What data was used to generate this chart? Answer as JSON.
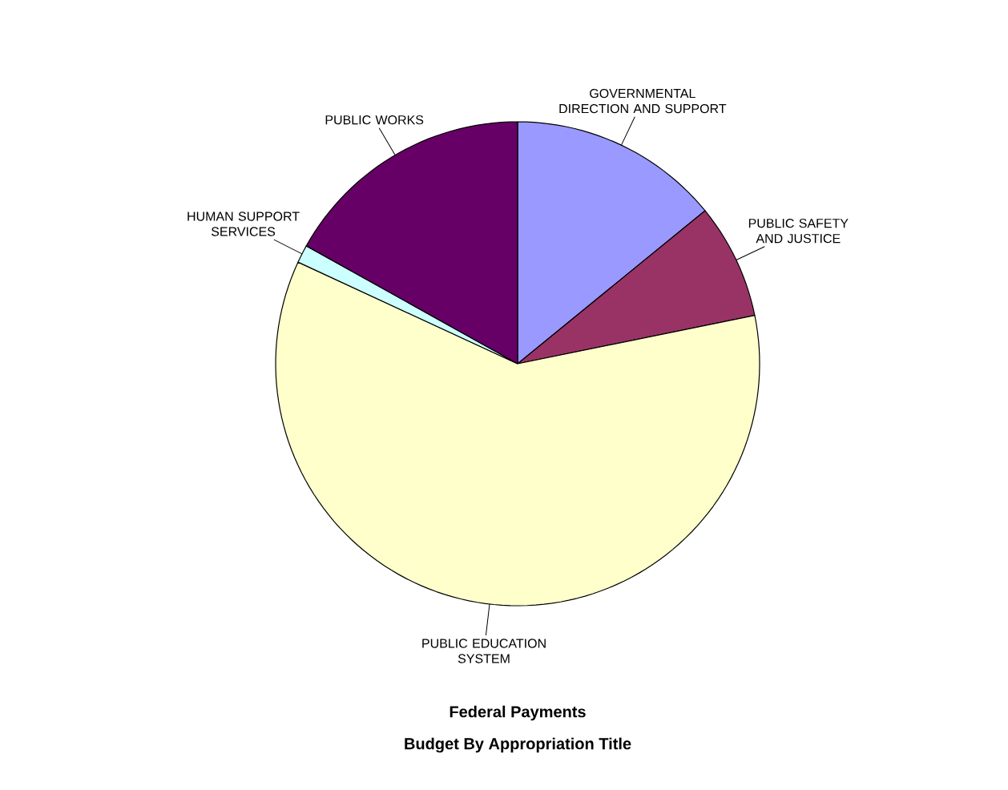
{
  "chart_data": {
    "type": "pie",
    "title": "Federal Payments",
    "subtitle": "Budget By Appropriation Title",
    "categories": [
      "GOVERNMENTAL DIRECTION AND SUPPORT",
      "PUBLIC SAFETY AND JUSTICE",
      "PUBLIC EDUCATION SYSTEM",
      "HUMAN SUPPORT SERVICES",
      "PUBLIC WORKS"
    ],
    "values": [
      14.1,
      7.7,
      60.1,
      1.2,
      16.9
    ],
    "colors": [
      "#9999ff",
      "#993366",
      "#ffffcc",
      "#ccffff",
      "#660066"
    ]
  }
}
